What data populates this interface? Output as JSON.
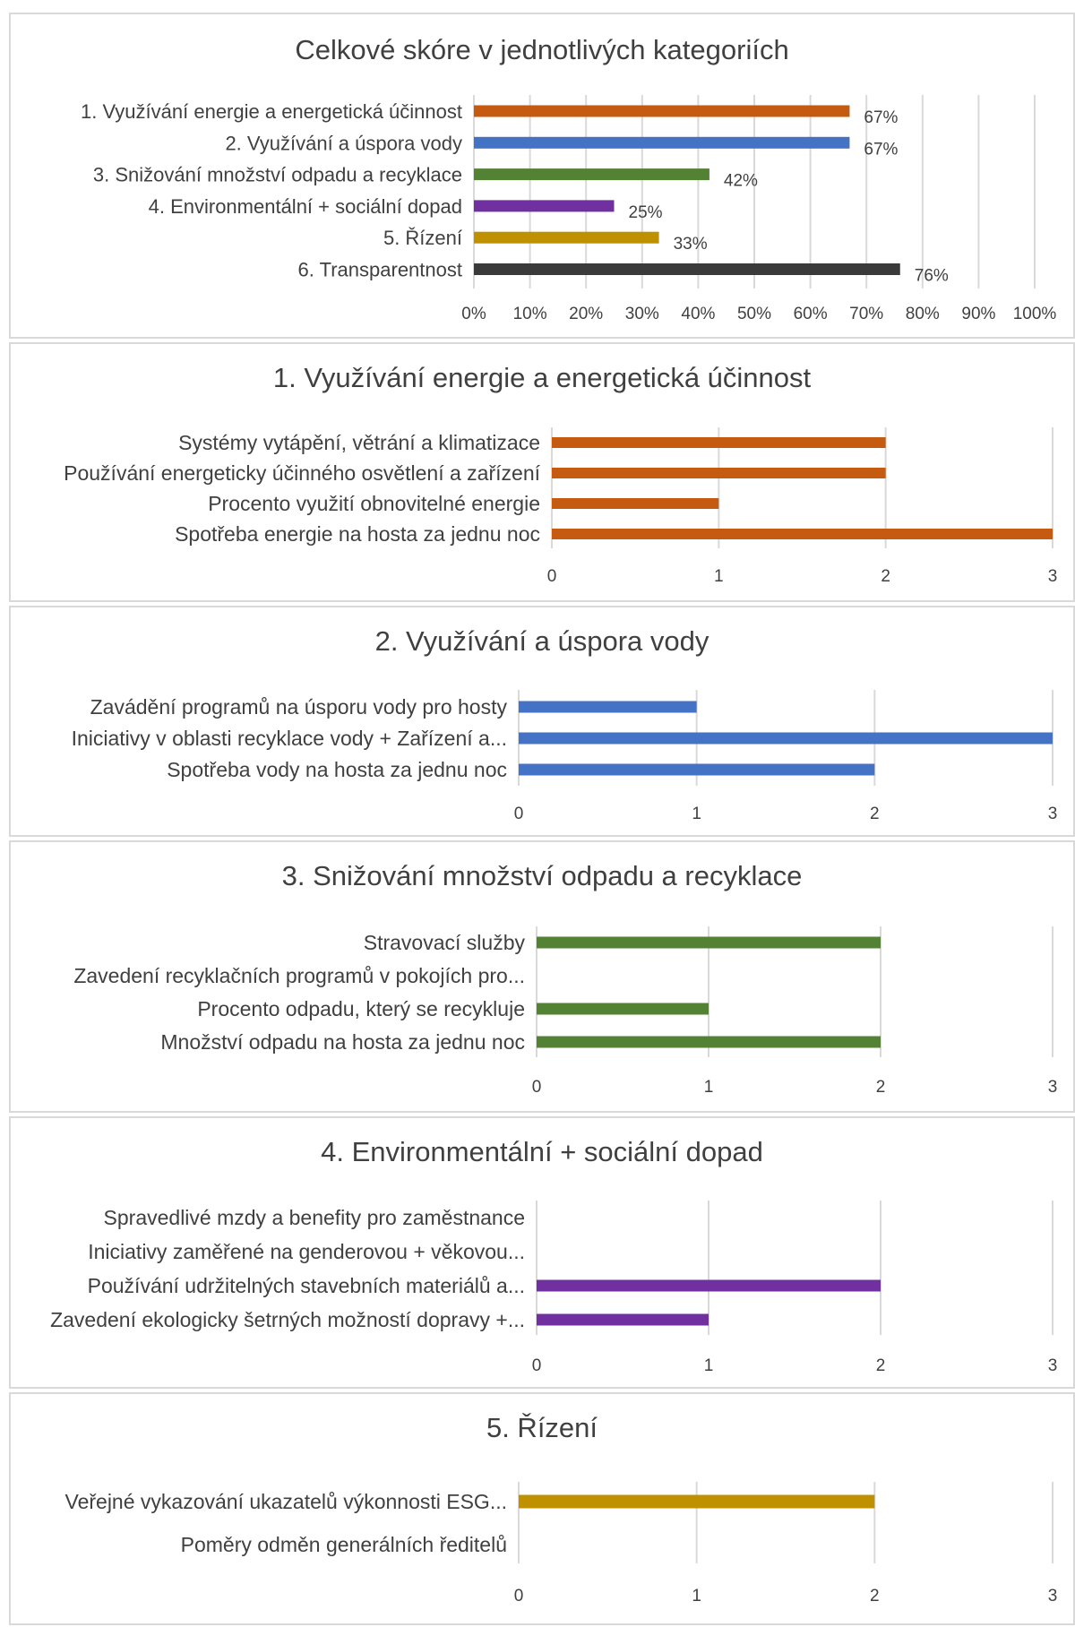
{
  "chart_data": [
    {
      "type": "bar",
      "orientation": "horizontal",
      "title": "Celkové skóre v jednotlivých kategoriích",
      "categories": [
        "1. Využívání energie a energetická účinnost",
        "2. Využívání a úspora vody",
        "3. Snižování množství odpadu a recyklace",
        "4. Environmentální + sociální dopad",
        "5. Řízení",
        "6. Transparentnost"
      ],
      "values": [
        67,
        67,
        42,
        25,
        33,
        76
      ],
      "data_labels": [
        "67%",
        "67%",
        "42%",
        "25%",
        "33%",
        "76%"
      ],
      "colors": [
        "#c55a11",
        "#4472c4",
        "#548235",
        "#7030a0",
        "#bf9000",
        "#3a3a3a"
      ],
      "xlim": [
        0,
        100
      ],
      "ticks": [
        0,
        10,
        20,
        30,
        40,
        50,
        60,
        70,
        80,
        90,
        100
      ],
      "tick_labels": [
        "0%",
        "10%",
        "20%",
        "30%",
        "40%",
        "50%",
        "60%",
        "70%",
        "80%",
        "90%",
        "100%"
      ],
      "grid": true,
      "legend": "none"
    },
    {
      "type": "bar",
      "orientation": "horizontal",
      "title": "1. Využívání energie a energetická účinnost",
      "categories": [
        "Systémy vytápění, větrání a klimatizace",
        "Používání energeticky účinného osvětlení a zařízení",
        "Procento využití obnovitelné energie",
        "Spotřeba energie na hosta za jednu noc"
      ],
      "values": [
        2,
        2,
        1,
        3
      ],
      "color": "#c55a11",
      "xlim": [
        0,
        3
      ],
      "ticks": [
        0,
        1,
        2,
        3
      ],
      "tick_labels": [
        "0",
        "1",
        "2",
        "3"
      ],
      "grid": true,
      "legend": "none"
    },
    {
      "type": "bar",
      "orientation": "horizontal",
      "title": "2. Využívání a úspora vody",
      "categories": [
        "Zavádění programů na úsporu vody pro hosty",
        "Iniciativy v oblasti recyklace vody + Zařízení a...",
        "Spotřeba vody na hosta za jednu noc"
      ],
      "values": [
        1,
        3,
        2
      ],
      "color": "#4472c4",
      "xlim": [
        0,
        3
      ],
      "ticks": [
        0,
        1,
        2,
        3
      ],
      "tick_labels": [
        "0",
        "1",
        "2",
        "3"
      ],
      "grid": true,
      "legend": "none"
    },
    {
      "type": "bar",
      "orientation": "horizontal",
      "title": "3. Snižování množství odpadu a recyklace",
      "categories": [
        "Stravovací služby",
        "Zavedení recyklačních programů v pokojích pro...",
        "Procento odpadu, který se recykluje",
        "Množství odpadu na hosta za jednu noc"
      ],
      "values": [
        2,
        0,
        1,
        2
      ],
      "color": "#548235",
      "xlim": [
        0,
        3
      ],
      "ticks": [
        0,
        1,
        2,
        3
      ],
      "tick_labels": [
        "0",
        "1",
        "2",
        "3"
      ],
      "grid": true,
      "legend": "none"
    },
    {
      "type": "bar",
      "orientation": "horizontal",
      "title": "4. Environmentální + sociální dopad",
      "categories": [
        "Spravedlivé mzdy a benefity pro zaměstnance",
        "Iniciativy zaměřené na genderovou + věkovou...",
        "Používání udržitelných stavebních materiálů a...",
        "Zavedení ekologicky šetrných možností dopravy +..."
      ],
      "values": [
        0,
        0,
        2,
        1
      ],
      "color": "#7030a0",
      "xlim": [
        0,
        3
      ],
      "ticks": [
        0,
        1,
        2,
        3
      ],
      "tick_labels": [
        "0",
        "1",
        "2",
        "3"
      ],
      "grid": true,
      "legend": "none"
    },
    {
      "type": "bar",
      "orientation": "horizontal",
      "title": "5. Řízení",
      "categories": [
        "Veřejné vykazování ukazatelů výkonnosti ESG...",
        "Poměry odměn generálních ředitelů"
      ],
      "values": [
        2,
        0
      ],
      "color": "#bf9000",
      "xlim": [
        0,
        3
      ],
      "ticks": [
        0,
        1,
        2,
        3
      ],
      "tick_labels": [
        "0",
        "1",
        "2",
        "3"
      ],
      "grid": true,
      "legend": "none"
    }
  ]
}
